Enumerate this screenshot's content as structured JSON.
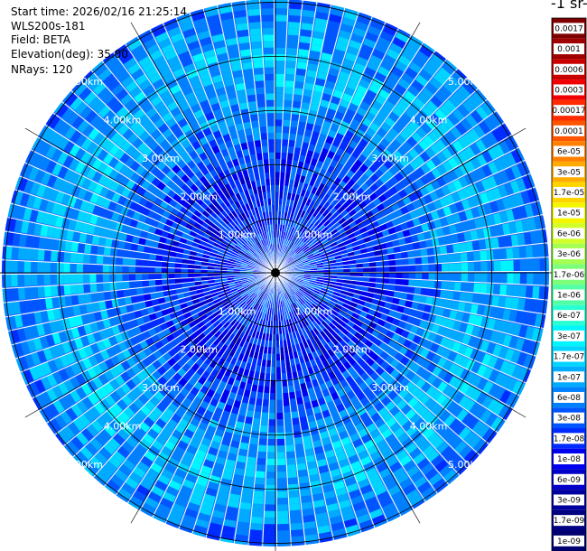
{
  "header": {
    "start_time": "Start time: 2026/02/16 21:25:14",
    "instrument": "WLS200s-181",
    "field": "Field: BETA",
    "elevation": "Elevation(deg): 35.00",
    "nrays": "NRays: 120"
  },
  "colorbar": {
    "unit_label": "-1 sr-",
    "ticks": [
      "0.0017",
      "0.001",
      "0.0006",
      "0.0003",
      "0.00017",
      "0.0001",
      "6e-05",
      "3e-05",
      "1.7e-05",
      "1e-05",
      "6e-06",
      "3e-06",
      "1.7e-06",
      "1e-06",
      "6e-07",
      "3e-07",
      "1.7e-07",
      "1e-07",
      "6e-08",
      "3e-08",
      "1.7e-08",
      "1e-08",
      "6e-09",
      "3e-09",
      "1.7e-09",
      "1e-09"
    ],
    "colors": [
      "#7f0000",
      "#a00000",
      "#c80000",
      "#f00000",
      "#ff2a00",
      "#ff5500",
      "#ff8000",
      "#ffab00",
      "#ffd400",
      "#f5f500",
      "#d2ff28",
      "#a5ff52",
      "#7dff7a",
      "#52ffa5",
      "#28ffd2",
      "#00f5ff",
      "#00d4ff",
      "#00aaff",
      "#0080ff",
      "#0055ff",
      "#002bff",
      "#0000f0",
      "#0000c8",
      "#00009f",
      "#000080",
      "#000070"
    ]
  },
  "chart_data": {
    "type": "ppi_polar",
    "field": "BETA",
    "elevation_deg": 35.0,
    "n_rays": 120,
    "range_rings_km": [
      1,
      2,
      3,
      4,
      5
    ],
    "range_ring_labels": [
      "1.00km",
      "2.00km",
      "3.00km",
      "4.00km",
      "5.00km"
    ],
    "max_range_km": 5.5,
    "spoke_angles_deg": [
      0,
      30,
      60,
      90,
      120,
      150,
      180,
      210,
      240,
      270,
      300,
      330
    ],
    "range_profile_km": [
      0.5,
      1.0,
      1.5,
      2.0,
      2.5,
      3.0,
      3.5,
      4.0,
      4.5,
      5.0,
      5.5
    ],
    "typical_beta_by_range": [
      3e-08,
      2e-08,
      1.5e-08,
      2e-08,
      3e-08,
      6e-08,
      1e-07,
      1.4e-07,
      1e-07,
      6e-08,
      5e-08
    ],
    "colorscale": "log10",
    "value_range": [
      1e-09,
      0.0017
    ]
  }
}
